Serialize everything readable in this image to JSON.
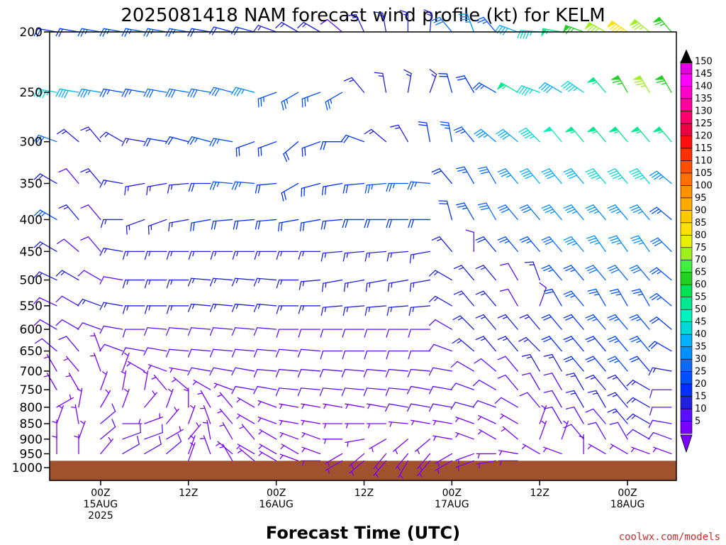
{
  "chart_data": {
    "type": "wind_barb_time_height",
    "title": "2025081418 NAM forecast wind profile (kt) for KELM",
    "xlabel": "Forecast Time (UTC)",
    "credit": "coolwx.com/models",
    "y_axis": {
      "label": "",
      "unit": "mb",
      "scale": "log-pressure",
      "range": [
        1000,
        200
      ],
      "ticks": [
        200,
        250,
        300,
        350,
        400,
        450,
        500,
        550,
        600,
        650,
        700,
        750,
        800,
        850,
        900,
        950,
        1000
      ]
    },
    "x_axis": {
      "range_hours": [
        0,
        84
      ],
      "start": "2025081418",
      "ticks": [
        {
          "hour": 6,
          "line1": "00Z",
          "line2": "15AUG",
          "line3": "2025"
        },
        {
          "hour": 18,
          "line1": "12Z",
          "line2": "",
          "line3": ""
        },
        {
          "hour": 30,
          "line1": "00Z",
          "line2": "16AUG",
          "line3": ""
        },
        {
          "hour": 42,
          "line1": "12Z",
          "line2": "",
          "line3": ""
        },
        {
          "hour": 54,
          "line1": "00Z",
          "line2": "17AUG",
          "line3": ""
        },
        {
          "hour": 66,
          "line1": "12Z",
          "line2": "",
          "line3": ""
        },
        {
          "hour": 78,
          "line1": "00Z",
          "line2": "18AUG",
          "line3": ""
        }
      ]
    },
    "ground": {
      "color": "#a0522d",
      "surface_pressure_mb": 975
    },
    "colorbar": {
      "levels": [
        5,
        10,
        15,
        20,
        25,
        30,
        35,
        40,
        45,
        50,
        55,
        60,
        65,
        70,
        75,
        80,
        85,
        90,
        95,
        100,
        105,
        110,
        115,
        120,
        125,
        130,
        135,
        140,
        145,
        150
      ],
      "colors": [
        "#7a00ff",
        "#5a10ff",
        "#2020e0",
        "#0030ff",
        "#0050ff",
        "#0a6cff",
        "#0090ff",
        "#00b0ff",
        "#00d8d8",
        "#00f0c0",
        "#00e890",
        "#00e050",
        "#20d020",
        "#40f040",
        "#a0f020",
        "#e8f000",
        "#ffe000",
        "#ffc800",
        "#ffaa00",
        "#ff9000",
        "#ff7000",
        "#ff5000",
        "#ff3000",
        "#ff1010",
        "#e80040",
        "#ff0070",
        "#ff00a0",
        "#ff00c8",
        "#ff00ff",
        "#e000e0"
      ]
    },
    "hours": [
      0,
      3,
      6,
      9,
      12,
      15,
      18,
      21,
      24,
      27,
      30,
      33,
      36,
      39,
      42,
      45,
      48,
      51,
      54,
      57,
      60,
      63,
      66,
      69,
      72,
      75,
      78,
      81,
      84
    ],
    "profiles": [
      {
        "p": 200,
        "dir": [
          280,
          280,
          280,
          280,
          280,
          280,
          280,
          280,
          285,
          285,
          290,
          300,
          300,
          310,
          335,
          350,
          0,
          5,
          320,
          340,
          320,
          290,
          275,
          280,
          290,
          300,
          305,
          310,
          320
        ],
        "spd": [
          20,
          20,
          25,
          25,
          25,
          25,
          25,
          20,
          20,
          20,
          15,
          15,
          15,
          10,
          15,
          15,
          15,
          15,
          30,
          35,
          25,
          40,
          45,
          55,
          65,
          75,
          85,
          75,
          65
        ]
      },
      {
        "p": 250,
        "dir": [
          280,
          280,
          280,
          280,
          280,
          280,
          280,
          280,
          285,
          285,
          250,
          240,
          250,
          240,
          320,
          350,
          10,
          20,
          345,
          330,
          300,
          300,
          290,
          300,
          305,
          320,
          330,
          330,
          330
        ],
        "spd": [
          45,
          40,
          35,
          25,
          25,
          30,
          30,
          30,
          30,
          35,
          25,
          25,
          25,
          25,
          15,
          15,
          15,
          15,
          20,
          20,
          25,
          55,
          45,
          40,
          45,
          55,
          65,
          75,
          65
        ]
      },
      {
        "p": 300,
        "dir": [
          290,
          310,
          320,
          300,
          280,
          280,
          285,
          285,
          280,
          250,
          250,
          230,
          250,
          270,
          290,
          310,
          330,
          350,
          350,
          320,
          310,
          310,
          315,
          320,
          320,
          320,
          320,
          320,
          320
        ],
        "spd": [
          30,
          15,
          15,
          15,
          15,
          20,
          20,
          25,
          25,
          20,
          20,
          20,
          20,
          20,
          20,
          15,
          15,
          20,
          25,
          25,
          35,
          40,
          45,
          50,
          55,
          55,
          55,
          55,
          55
        ]
      },
      {
        "p": 350,
        "dir": [
          300,
          320,
          320,
          280,
          260,
          260,
          265,
          270,
          275,
          275,
          265,
          240,
          255,
          260,
          265,
          265,
          270,
          275,
          320,
          330,
          330,
          320,
          320,
          320,
          320,
          320,
          320,
          320,
          310
        ],
        "spd": [
          15,
          10,
          15,
          15,
          15,
          15,
          15,
          20,
          25,
          25,
          20,
          20,
          20,
          20,
          20,
          25,
          25,
          25,
          20,
          25,
          30,
          35,
          40,
          40,
          40,
          45,
          45,
          45,
          35
        ]
      },
      {
        "p": 400,
        "dir": [
          300,
          320,
          320,
          270,
          250,
          250,
          260,
          260,
          265,
          265,
          265,
          260,
          260,
          265,
          270,
          270,
          270,
          270,
          345,
          330,
          330,
          320,
          320,
          320,
          320,
          320,
          320,
          320,
          310
        ],
        "spd": [
          25,
          15,
          10,
          15,
          15,
          15,
          15,
          20,
          20,
          20,
          20,
          20,
          20,
          20,
          20,
          20,
          20,
          20,
          20,
          25,
          30,
          30,
          30,
          35,
          35,
          35,
          35,
          35,
          25
        ]
      },
      {
        "p": 450,
        "dir": [
          300,
          310,
          320,
          280,
          270,
          270,
          270,
          270,
          270,
          270,
          270,
          270,
          270,
          265,
          265,
          265,
          265,
          260,
          320,
          0,
          320,
          320,
          320,
          320,
          320,
          325,
          325,
          325,
          315
        ],
        "spd": [
          15,
          10,
          10,
          15,
          15,
          15,
          15,
          15,
          15,
          15,
          15,
          15,
          15,
          15,
          15,
          15,
          15,
          15,
          15,
          10,
          20,
          25,
          25,
          30,
          35,
          35,
          35,
          35,
          30
        ]
      },
      {
        "p": 500,
        "dir": [
          295,
          300,
          300,
          280,
          270,
          270,
          270,
          275,
          275,
          275,
          275,
          270,
          265,
          260,
          260,
          260,
          260,
          260,
          300,
          320,
          320,
          330,
          340,
          320,
          320,
          320,
          320,
          320,
          310
        ],
        "spd": [
          15,
          15,
          10,
          10,
          15,
          15,
          15,
          15,
          15,
          15,
          15,
          15,
          15,
          15,
          15,
          15,
          15,
          15,
          15,
          15,
          15,
          10,
          15,
          25,
          25,
          30,
          30,
          30,
          25
        ]
      },
      {
        "p": 550,
        "dir": [
          295,
          300,
          290,
          280,
          270,
          270,
          270,
          275,
          275,
          275,
          275,
          270,
          270,
          265,
          265,
          265,
          265,
          265,
          300,
          320,
          320,
          330,
          20,
          330,
          320,
          330,
          330,
          330,
          310
        ],
        "spd": [
          10,
          10,
          15,
          15,
          15,
          15,
          15,
          15,
          15,
          15,
          15,
          15,
          15,
          15,
          15,
          15,
          15,
          15,
          15,
          15,
          15,
          10,
          10,
          20,
          25,
          25,
          25,
          25,
          25
        ]
      },
      {
        "p": 600,
        "dir": [
          300,
          300,
          290,
          280,
          270,
          275,
          275,
          275,
          275,
          275,
          275,
          270,
          270,
          270,
          270,
          270,
          270,
          270,
          300,
          315,
          320,
          320,
          320,
          320,
          320,
          320,
          320,
          320,
          310
        ],
        "spd": [
          10,
          10,
          10,
          10,
          10,
          10,
          10,
          10,
          10,
          10,
          10,
          10,
          10,
          10,
          10,
          10,
          10,
          10,
          10,
          15,
          15,
          15,
          15,
          20,
          20,
          25,
          25,
          25,
          20
        ]
      },
      {
        "p": 650,
        "dir": [
          310,
          320,
          340,
          290,
          280,
          280,
          275,
          275,
          275,
          275,
          275,
          275,
          275,
          270,
          270,
          270,
          270,
          270,
          290,
          310,
          320,
          320,
          315,
          320,
          320,
          320,
          320,
          320,
          300
        ],
        "spd": [
          10,
          10,
          5,
          10,
          10,
          10,
          10,
          10,
          10,
          10,
          10,
          10,
          10,
          10,
          10,
          10,
          10,
          10,
          10,
          15,
          15,
          15,
          15,
          20,
          20,
          20,
          25,
          25,
          20
        ]
      },
      {
        "p": 700,
        "dir": [
          330,
          320,
          340,
          20,
          300,
          290,
          280,
          280,
          280,
          280,
          275,
          275,
          275,
          275,
          275,
          275,
          275,
          275,
          280,
          300,
          310,
          320,
          330,
          330,
          320,
          320,
          320,
          320,
          280
        ],
        "spd": [
          5,
          5,
          5,
          5,
          5,
          5,
          5,
          10,
          10,
          10,
          10,
          10,
          10,
          10,
          10,
          10,
          10,
          10,
          10,
          10,
          10,
          10,
          15,
          15,
          20,
          20,
          25,
          20,
          15
        ]
      },
      {
        "p": 750,
        "dir": [
          330,
          330,
          20,
          10,
          10,
          320,
          310,
          300,
          290,
          280,
          280,
          275,
          275,
          275,
          275,
          275,
          275,
          280,
          280,
          290,
          300,
          320,
          330,
          330,
          330,
          320,
          320,
          300,
          270
        ],
        "spd": [
          5,
          5,
          5,
          5,
          5,
          5,
          5,
          5,
          5,
          10,
          10,
          10,
          10,
          10,
          10,
          10,
          10,
          10,
          10,
          10,
          10,
          10,
          10,
          10,
          15,
          15,
          15,
          15,
          10
        ]
      },
      {
        "p": 800,
        "dir": [
          60,
          10,
          30,
          20,
          40,
          20,
          0,
          330,
          320,
          300,
          290,
          280,
          280,
          280,
          280,
          280,
          280,
          280,
          280,
          285,
          290,
          300,
          320,
          330,
          330,
          330,
          320,
          300,
          270
        ],
        "spd": [
          5,
          5,
          5,
          5,
          5,
          5,
          5,
          5,
          5,
          5,
          5,
          5,
          5,
          5,
          5,
          5,
          10,
          10,
          10,
          10,
          10,
          10,
          10,
          10,
          15,
          15,
          15,
          15,
          10
        ]
      },
      {
        "p": 850,
        "dir": [
          20,
          350,
          50,
          90,
          70,
          40,
          20,
          340,
          320,
          300,
          290,
          280,
          280,
          270,
          270,
          270,
          275,
          280,
          280,
          290,
          295,
          300,
          20,
          330,
          330,
          320,
          320,
          300,
          280
        ],
        "spd": [
          5,
          5,
          10,
          5,
          5,
          5,
          5,
          5,
          5,
          5,
          5,
          5,
          5,
          5,
          5,
          5,
          5,
          5,
          5,
          5,
          5,
          5,
          5,
          10,
          10,
          10,
          15,
          15,
          10
        ]
      },
      {
        "p": 900,
        "dir": [
          0,
          20,
          50,
          70,
          70,
          60,
          40,
          350,
          330,
          320,
          300,
          290,
          290,
          270,
          260,
          240,
          230,
          230,
          280,
          290,
          300,
          310,
          20,
          20,
          320,
          330,
          330,
          300,
          290
        ],
        "spd": [
          5,
          5,
          10,
          10,
          10,
          5,
          5,
          5,
          5,
          5,
          5,
          5,
          5,
          5,
          5,
          5,
          5,
          5,
          5,
          5,
          5,
          5,
          5,
          5,
          10,
          10,
          10,
          10,
          10
        ]
      },
      {
        "p": 950,
        "dir": [
          0,
          0,
          40,
          60,
          60,
          50,
          20,
          340,
          310,
          300,
          300,
          300,
          290,
          240,
          230,
          220,
          220,
          220,
          240,
          250,
          270,
          280,
          300,
          290,
          0,
          300,
          300,
          290,
          290
        ],
        "spd": [
          5,
          5,
          5,
          10,
          10,
          10,
          5,
          5,
          5,
          5,
          5,
          5,
          5,
          5,
          5,
          5,
          5,
          5,
          5,
          5,
          5,
          5,
          5,
          5,
          5,
          5,
          5,
          5,
          5
        ]
      },
      {
        "p": 975,
        "dir": [
          0,
          0,
          0,
          0,
          0,
          0,
          20,
          0,
          330,
          310,
          300,
          290,
          270,
          240,
          230,
          220,
          210,
          220,
          240,
          250,
          260,
          270,
          0,
          0,
          0,
          0,
          0,
          0,
          0
        ],
        "spd": [
          0,
          0,
          0,
          0,
          0,
          0,
          5,
          0,
          5,
          5,
          5,
          5,
          5,
          5,
          5,
          5,
          5,
          5,
          5,
          5,
          5,
          5,
          0,
          0,
          0,
          0,
          0,
          0,
          0
        ]
      }
    ]
  }
}
